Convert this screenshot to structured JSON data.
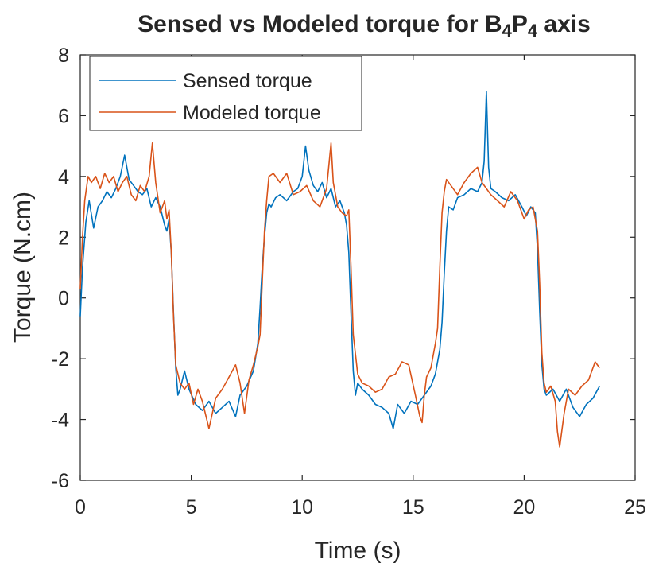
{
  "chart_data": {
    "type": "line",
    "title": "Sensed vs Modeled torque for B",
    "title_sub1": "4",
    "title_mid": "P",
    "title_sub2": "4",
    "title_end": " axis",
    "xlabel": "Time (s)",
    "ylabel": "Torque (N.cm)",
    "xlim": [
      0,
      25
    ],
    "ylim": [
      -6,
      8
    ],
    "xticks": [
      0,
      5,
      10,
      15,
      20,
      25
    ],
    "yticks": [
      -6,
      -4,
      -2,
      0,
      2,
      4,
      6,
      8
    ],
    "xtick_labels": [
      "0",
      "5",
      "10",
      "15",
      "20",
      "25"
    ],
    "ytick_labels": [
      "-6",
      "-4",
      "-2",
      "0",
      "2",
      "4",
      "6",
      "8"
    ],
    "grid": false,
    "legend_position": "top-left",
    "series": [
      {
        "name": "Sensed torque",
        "color": "#0072BD",
        "x": [
          0,
          0.1,
          0.25,
          0.4,
          0.6,
          0.8,
          1.0,
          1.2,
          1.4,
          1.6,
          1.8,
          2.0,
          2.2,
          2.4,
          2.6,
          2.8,
          3.0,
          3.2,
          3.4,
          3.6,
          3.8,
          3.9,
          4.0,
          4.1,
          4.2,
          4.3,
          4.4,
          4.5,
          4.7,
          4.9,
          5.2,
          5.5,
          5.8,
          6.1,
          6.4,
          6.7,
          7.0,
          7.2,
          7.5,
          7.8,
          8.0,
          8.1,
          8.2,
          8.3,
          8.4,
          8.5,
          8.6,
          8.8,
          9.0,
          9.3,
          9.6,
          9.8,
          10.0,
          10.15,
          10.3,
          10.5,
          10.7,
          10.9,
          11.1,
          11.3,
          11.5,
          11.7,
          11.9,
          12.0,
          12.1,
          12.2,
          12.3,
          12.4,
          12.5,
          12.7,
          13.0,
          13.3,
          13.6,
          13.9,
          14.1,
          14.3,
          14.6,
          14.9,
          15.2,
          15.5,
          15.8,
          16.0,
          16.2,
          16.3,
          16.4,
          16.5,
          16.6,
          16.8,
          17.0,
          17.3,
          17.6,
          17.9,
          18.1,
          18.2,
          18.3,
          18.4,
          18.5,
          18.7,
          19.0,
          19.3,
          19.6,
          19.9,
          20.1,
          20.3,
          20.5,
          20.6,
          20.7,
          20.8,
          20.9,
          21.0,
          21.3,
          21.6,
          21.9,
          22.2,
          22.5,
          22.8,
          23.1,
          23.4
        ],
        "y": [
          -0.6,
          1.0,
          2.5,
          3.2,
          2.3,
          3.0,
          3.2,
          3.5,
          3.3,
          3.6,
          4.0,
          4.7,
          3.9,
          3.7,
          3.5,
          3.4,
          3.6,
          3.0,
          3.3,
          3.0,
          2.4,
          2.2,
          2.6,
          1.5,
          -0.5,
          -2.3,
          -3.2,
          -3.0,
          -2.4,
          -3.0,
          -3.5,
          -3.7,
          -3.4,
          -3.8,
          -3.6,
          -3.4,
          -3.9,
          -3.2,
          -2.9,
          -2.4,
          -1.5,
          -0.3,
          1.0,
          2.0,
          2.8,
          3.1,
          3.0,
          3.3,
          3.4,
          3.2,
          3.5,
          3.6,
          4.0,
          5.0,
          4.2,
          3.7,
          3.5,
          3.8,
          3.3,
          3.6,
          3.0,
          3.2,
          2.8,
          2.4,
          1.5,
          -0.5,
          -2.4,
          -3.2,
          -2.8,
          -3.0,
          -3.2,
          -3.5,
          -3.6,
          -3.8,
          -4.3,
          -3.5,
          -3.8,
          -3.4,
          -3.5,
          -3.2,
          -2.9,
          -2.5,
          -1.7,
          -0.8,
          0.8,
          2.2,
          3.0,
          2.9,
          3.3,
          3.4,
          3.6,
          3.5,
          3.8,
          4.5,
          6.8,
          4.3,
          3.6,
          3.5,
          3.3,
          3.2,
          3.4,
          3.0,
          2.7,
          3.0,
          2.8,
          1.6,
          -0.4,
          -2.2,
          -3.0,
          -3.2,
          -3.0,
          -3.4,
          -3.0,
          -3.6,
          -3.9,
          -3.5,
          -3.3,
          -2.9
        ],
        "min_y": -4.3,
        "max_y": 6.8
      },
      {
        "name": "Modeled torque",
        "color": "#D95319",
        "x": [
          0,
          0.1,
          0.2,
          0.35,
          0.5,
          0.7,
          0.9,
          1.1,
          1.3,
          1.5,
          1.7,
          1.9,
          2.1,
          2.3,
          2.5,
          2.7,
          2.9,
          3.1,
          3.25,
          3.4,
          3.6,
          3.8,
          3.9,
          4.0,
          4.1,
          4.2,
          4.3,
          4.5,
          4.7,
          4.9,
          5.1,
          5.3,
          5.5,
          5.8,
          6.1,
          6.4,
          6.7,
          7.0,
          7.2,
          7.4,
          7.6,
          7.8,
          8.0,
          8.1,
          8.2,
          8.3,
          8.4,
          8.5,
          8.7,
          9.0,
          9.3,
          9.6,
          9.9,
          10.2,
          10.5,
          10.8,
          11.1,
          11.3,
          11.4,
          11.6,
          11.8,
          12.0,
          12.1,
          12.2,
          12.3,
          12.5,
          12.7,
          13.0,
          13.3,
          13.6,
          13.9,
          14.2,
          14.5,
          14.8,
          15.1,
          15.3,
          15.4,
          15.5,
          15.6,
          15.8,
          16.0,
          16.1,
          16.2,
          16.3,
          16.4,
          16.5,
          16.7,
          17.0,
          17.3,
          17.6,
          17.9,
          18.1,
          18.3,
          18.5,
          18.8,
          19.1,
          19.4,
          19.7,
          20.0,
          20.2,
          20.4,
          20.6,
          20.7,
          20.8,
          20.9,
          21.0,
          21.2,
          21.4,
          21.5,
          21.6,
          21.8,
          22.0,
          22.3,
          22.6,
          22.9,
          23.2,
          23.4
        ],
        "y": [
          0.3,
          2.0,
          3.2,
          4.0,
          3.8,
          4.0,
          3.6,
          4.1,
          3.8,
          4.0,
          3.5,
          3.8,
          4.0,
          3.4,
          3.2,
          3.7,
          3.5,
          4.0,
          5.1,
          3.8,
          2.8,
          3.2,
          2.6,
          2.9,
          1.5,
          -0.6,
          -2.2,
          -2.8,
          -3.0,
          -2.8,
          -3.5,
          -3.0,
          -3.4,
          -4.3,
          -3.3,
          -3.0,
          -2.6,
          -2.2,
          -2.8,
          -3.8,
          -2.7,
          -2.2,
          -1.6,
          -1.2,
          0.5,
          2.2,
          3.2,
          4.0,
          4.1,
          3.8,
          4.1,
          3.4,
          3.5,
          3.7,
          3.2,
          3.0,
          3.6,
          5.1,
          3.8,
          3.0,
          2.8,
          2.7,
          2.9,
          1.0,
          -1.2,
          -2.5,
          -2.8,
          -2.9,
          -3.1,
          -3.0,
          -2.6,
          -2.5,
          -2.1,
          -2.2,
          -3.2,
          -3.9,
          -4.1,
          -3.2,
          -2.6,
          -2.3,
          -1.5,
          -1.0,
          1.0,
          2.8,
          3.5,
          3.9,
          3.7,
          3.4,
          3.8,
          4.1,
          4.3,
          3.8,
          3.6,
          3.4,
          3.2,
          3.0,
          3.5,
          3.2,
          2.6,
          2.9,
          3.0,
          2.2,
          0.5,
          -1.8,
          -2.8,
          -3.1,
          -2.9,
          -3.4,
          -4.4,
          -4.9,
          -3.8,
          -3.0,
          -3.2,
          -2.9,
          -2.7,
          -2.1,
          -2.3
        ],
        "min_y": -4.9,
        "max_y": 5.1
      }
    ]
  }
}
